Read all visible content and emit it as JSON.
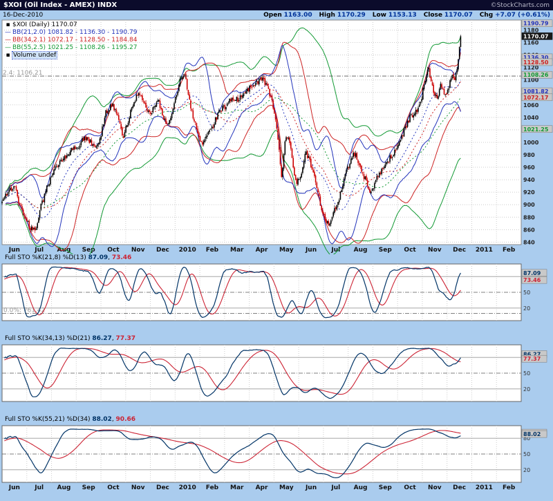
{
  "header": {
    "title": "$XOI (Oil Index - AMEX) INDX",
    "copyright": "©StockCharts.com"
  },
  "info": {
    "date": "16-Dec-2010",
    "fields": [
      {
        "label": "Open",
        "value": "1163.00"
      },
      {
        "label": "High",
        "value": "1170.29"
      },
      {
        "label": "Low",
        "value": "1153.13"
      },
      {
        "label": "Close",
        "value": "1170.07"
      },
      {
        "label": "Chg",
        "value": "+7.07 (+0.61%)"
      }
    ]
  },
  "legend": {
    "symbol_swatch": "▪",
    "band_swatch": "—",
    "symbol_line": "$XOI (Daily) 1170.07",
    "volume_line": "Volume undef"
  },
  "colors": {
    "background": "#aaccee",
    "titlebar_bg": "#0b0b2b",
    "candle_up": "#000000",
    "candle_down": "#cc0000",
    "stoch_k": "#003366",
    "stoch_d": "#cc2233",
    "info_value": "#003399",
    "grid": "#cccccc",
    "axis_text": "#222222",
    "box_bg": "#c9c9c9",
    "box_border": "#777777",
    "close_box_bg": "#1a1a1a",
    "close_box_text": "#ffffff"
  },
  "chart_data": {
    "type": "candlestick",
    "symbol": "$XOI",
    "period": "Daily",
    "title": "$XOI (Oil Index - AMEX) INDX",
    "ohlc_summary": {
      "open": 1163.0,
      "high": 1170.29,
      "low": 1153.13,
      "close": 1170.07,
      "chg": "+7.07 (+0.61%)"
    },
    "last_close": 1170.07,
    "y_axis": {
      "min": 840,
      "max": 1180,
      "step": 20,
      "scale_min": 836,
      "scale_max": 1196
    },
    "months": [
      {
        "label": "Jun"
      },
      {
        "label": "Jul"
      },
      {
        "label": "Aug"
      },
      {
        "label": "Sep"
      },
      {
        "label": "Oct"
      },
      {
        "label": "Nov"
      },
      {
        "label": "Dec"
      },
      {
        "label": "2010",
        "bold": true
      },
      {
        "label": "Feb"
      },
      {
        "label": "Mar"
      },
      {
        "label": "Apr"
      },
      {
        "label": "May"
      },
      {
        "label": "Jun"
      },
      {
        "label": "Jul"
      },
      {
        "label": "Aug"
      },
      {
        "label": "Sep"
      },
      {
        "label": "Oct"
      },
      {
        "label": "Nov"
      },
      {
        "label": "Dec"
      },
      {
        "label": "2011",
        "bold": true
      },
      {
        "label": "Feb"
      }
    ],
    "span_months": 21,
    "data_span_months": 18.55,
    "num_points": 390,
    "price_anchors": [
      [
        0,
        905
      ],
      [
        0.25,
        922
      ],
      [
        0.5,
        930
      ],
      [
        0.7,
        902
      ],
      [
        0.95,
        878
      ],
      [
        1.15,
        862
      ],
      [
        1.35,
        857
      ],
      [
        1.55,
        895
      ],
      [
        1.8,
        925
      ],
      [
        2.05,
        952
      ],
      [
        2.3,
        968
      ],
      [
        2.55,
        975
      ],
      [
        2.8,
        988
      ],
      [
        3.05,
        992
      ],
      [
        3.3,
        1006
      ],
      [
        3.55,
        1002
      ],
      [
        3.8,
        988
      ],
      [
        4.0,
        1012
      ],
      [
        4.2,
        1048
      ],
      [
        4.45,
        1062
      ],
      [
        4.7,
        1040
      ],
      [
        4.9,
        1008
      ],
      [
        5.1,
        1035
      ],
      [
        5.35,
        1068
      ],
      [
        5.6,
        1080
      ],
      [
        5.85,
        1052
      ],
      [
        6.05,
        1048
      ],
      [
        6.3,
        1072
      ],
      [
        6.55,
        1036
      ],
      [
        6.75,
        1028
      ],
      [
        7.0,
        1068
      ],
      [
        7.2,
        1098
      ],
      [
        7.4,
        1108
      ],
      [
        7.6,
        1062
      ],
      [
        7.8,
        1030
      ],
      [
        8.05,
        996
      ],
      [
        8.3,
        1012
      ],
      [
        8.55,
        1028
      ],
      [
        8.8,
        1052
      ],
      [
        9.05,
        1058
      ],
      [
        9.3,
        1072
      ],
      [
        9.55,
        1068
      ],
      [
        9.8,
        1082
      ],
      [
        10.05,
        1088
      ],
      [
        10.3,
        1096
      ],
      [
        10.5,
        1104
      ],
      [
        10.7,
        1092
      ],
      [
        10.9,
        1068
      ],
      [
        11.1,
        1028
      ],
      [
        11.22,
        985
      ],
      [
        11.3,
        942
      ],
      [
        11.45,
        1002
      ],
      [
        11.6,
        1012
      ],
      [
        11.75,
        965
      ],
      [
        11.9,
        932
      ],
      [
        12.1,
        952
      ],
      [
        12.3,
        985
      ],
      [
        12.5,
        962
      ],
      [
        12.7,
        935
      ],
      [
        12.9,
        898
      ],
      [
        13.05,
        880
      ],
      [
        13.2,
        866
      ],
      [
        13.4,
        888
      ],
      [
        13.6,
        905
      ],
      [
        13.8,
        938
      ],
      [
        13.95,
        955
      ],
      [
        14.15,
        978
      ],
      [
        14.3,
        982
      ],
      [
        14.5,
        958
      ],
      [
        14.7,
        940
      ],
      [
        14.9,
        914
      ],
      [
        15.1,
        940
      ],
      [
        15.3,
        952
      ],
      [
        15.5,
        965
      ],
      [
        15.7,
        975
      ],
      [
        15.9,
        988
      ],
      [
        16.1,
        1002
      ],
      [
        16.3,
        1022
      ],
      [
        16.5,
        1040
      ],
      [
        16.7,
        1048
      ],
      [
        16.9,
        1058
      ],
      [
        17.1,
        1098
      ],
      [
        17.25,
        1118
      ],
      [
        17.45,
        1082
      ],
      [
        17.6,
        1068
      ],
      [
        17.75,
        1092
      ],
      [
        17.9,
        1075
      ],
      [
        18.05,
        1085
      ],
      [
        18.2,
        1108
      ],
      [
        18.3,
        1098
      ],
      [
        18.4,
        1118
      ],
      [
        18.5,
        1150
      ],
      [
        18.55,
        1170.07
      ]
    ],
    "bollinger": [
      {
        "label": "BB(21,2.0) 1081.82 - 1136.30 - 1190.79",
        "n": 21,
        "mult": 2.0,
        "lower": 1081.82,
        "mid": 1136.3,
        "upper": 1190.79,
        "color": "#2233bb"
      },
      {
        "label": "BB(34,2.1) 1072.17 - 1128.50 - 1184.84",
        "n": 34,
        "mult": 2.1,
        "lower": 1072.17,
        "mid": 1128.5,
        "upper": 1184.84,
        "color": "#cc2222"
      },
      {
        "label": "BB(55,2.5) 1021.25 - 1108.26 - 1195.27",
        "n": 55,
        "mult": 2.5,
        "lower": 1021.25,
        "mid": 1108.26,
        "upper": 1195.27,
        "color": "#119933"
      }
    ],
    "axis_boxes": [
      {
        "text": "1190.79",
        "price": 1190.79,
        "color": "#2233bb"
      },
      {
        "text": "1170.07",
        "price": 1170.07,
        "highlight": true
      },
      {
        "text": "1136.30",
        "price": 1136.3,
        "color": "#2233bb"
      },
      {
        "text": "1128.50",
        "price": 1128.5,
        "color": "#cc2222"
      },
      {
        "text": "1108.26",
        "price": 1108.26,
        "color": "#119933"
      },
      {
        "text": "1081.82",
        "price": 1081.82,
        "color": "#2233bb"
      },
      {
        "text": "1072.17",
        "price": 1072.17,
        "color": "#cc2222"
      },
      {
        "text": "1021.25",
        "price": 1021.25,
        "color": "#119933"
      }
    ],
    "annotation": {
      "text": "2.4: 1106.21",
      "price": 1106.21
    },
    "panels": [
      {
        "title": "Full STO %K(21,8) %D(13)",
        "k_value": "87.09",
        "sep": ", ",
        "d_value": "73.46",
        "k_lookback": 21,
        "k_smooth": 8,
        "d_period": 13,
        "levels": [
          80,
          50,
          20
        ],
        "boxes": [
          {
            "text": "87.09",
            "value": 87.09,
            "series": "k"
          },
          {
            "text": "73.46",
            "value": 73.46,
            "series": "d"
          }
        ],
        "annotation": {
          "text": "0.0%: 761.42",
          "value": 10
        }
      },
      {
        "title": "Full STO %K(34,13) %D(21)",
        "k_value": "86.27",
        "sep": ", ",
        "d_value": "77.37",
        "k_lookback": 34,
        "k_smooth": 13,
        "d_period": 21,
        "levels": [
          80,
          50,
          20
        ],
        "boxes": [
          {
            "text": "86.27",
            "value": 86.27,
            "series": "k"
          },
          {
            "text": "77.37",
            "value": 77.37,
            "series": "d"
          }
        ]
      },
      {
        "title": "Full STO %K(55,21) %D(34)",
        "k_value": "88.02",
        "sep": ", ",
        "d_value": "90.66",
        "k_lookback": 55,
        "k_smooth": 21,
        "d_period": 34,
        "levels": [
          80,
          50,
          20
        ],
        "boxes": [
          {
            "text": "90.66",
            "value": 90.66,
            "series": "d"
          },
          {
            "text": "88.02",
            "value": 88.02,
            "series": "k"
          }
        ]
      }
    ]
  }
}
